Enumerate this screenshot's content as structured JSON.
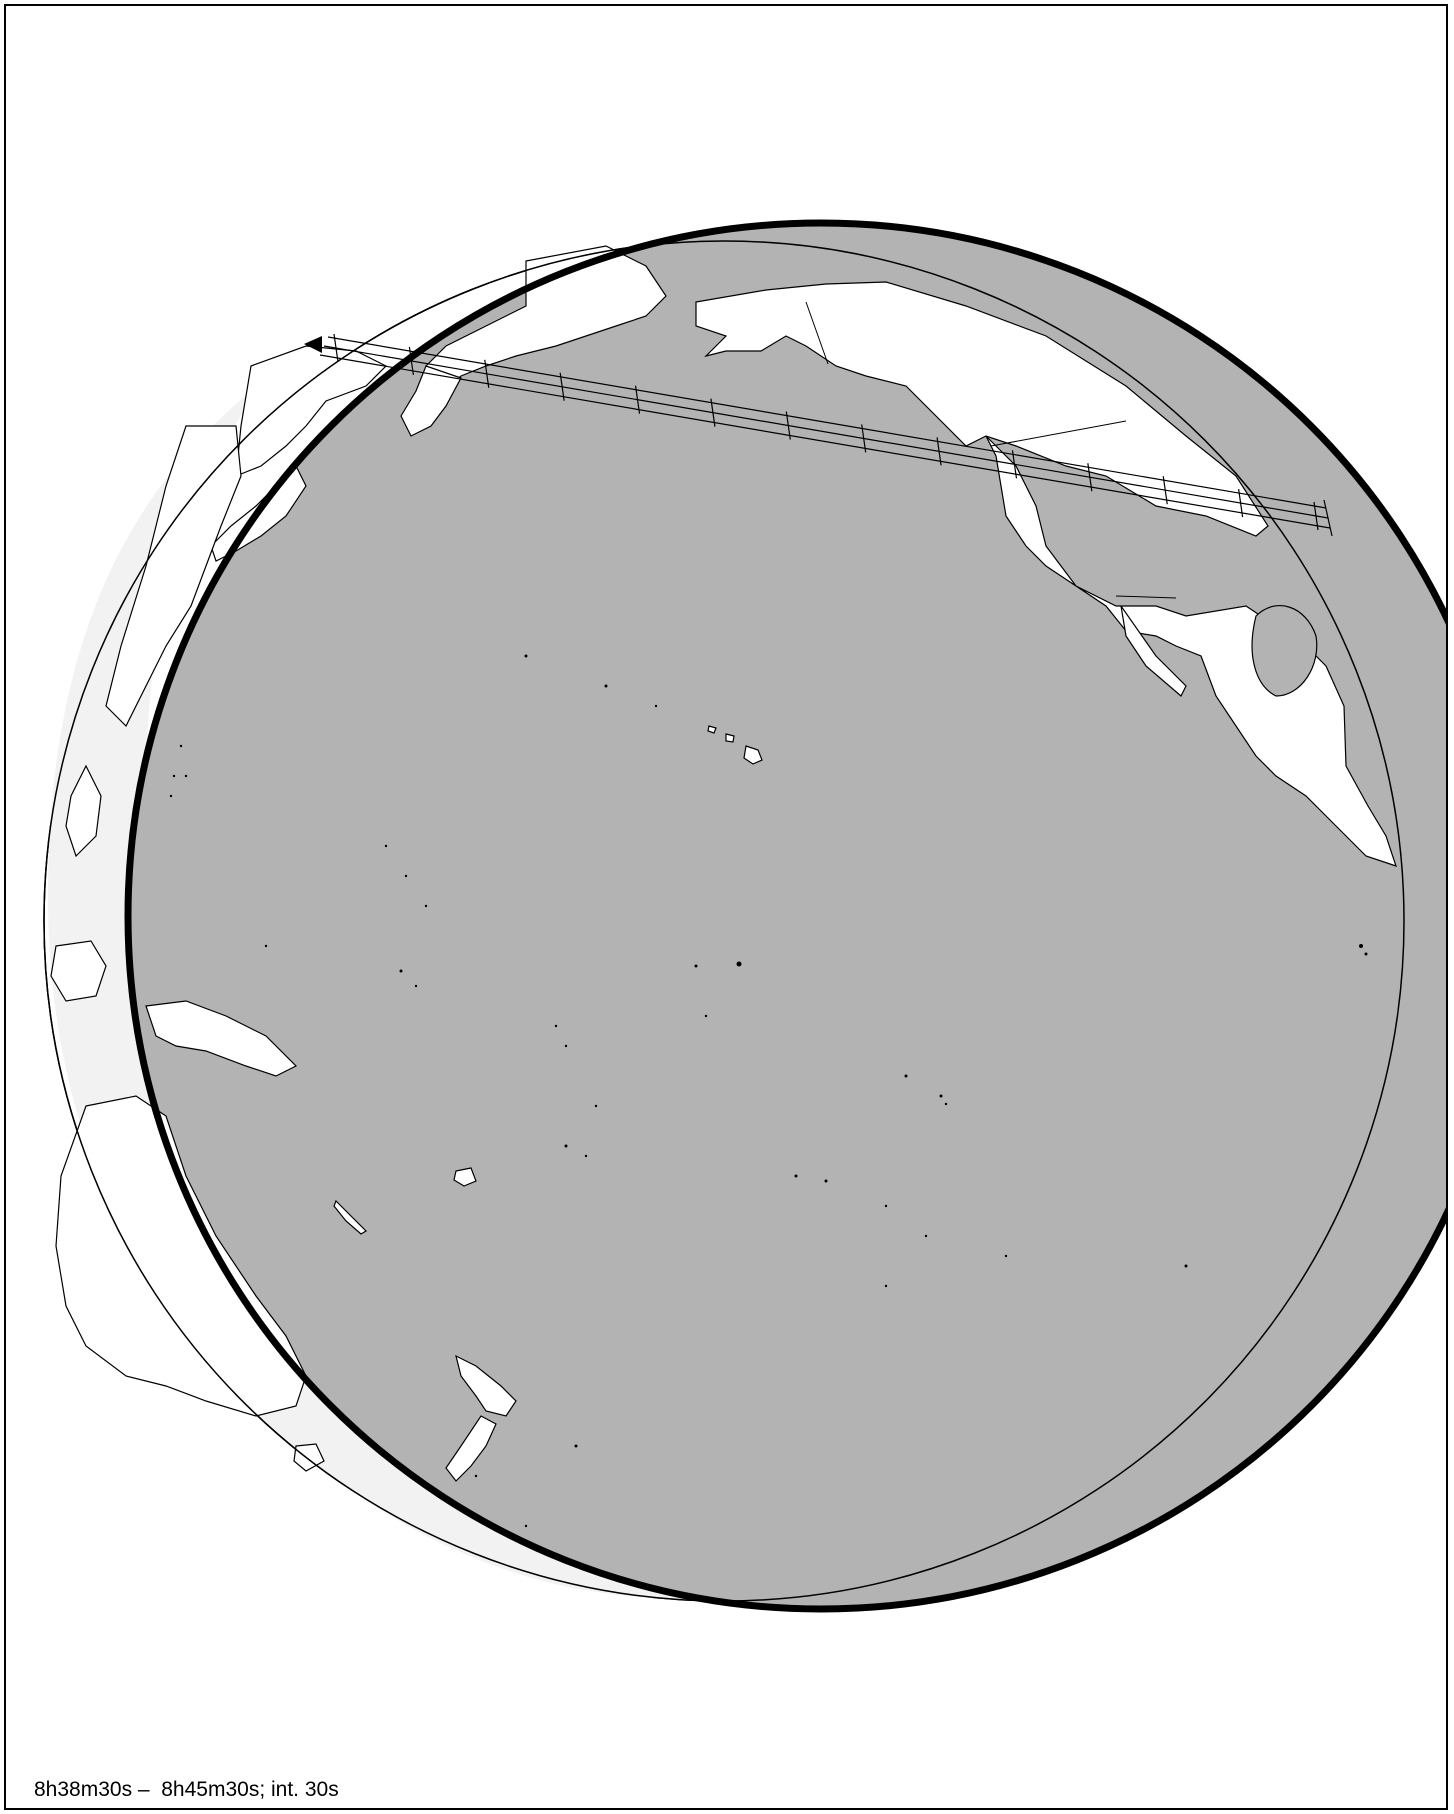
{
  "caption": "8h38m30s –  8h45m30s; int. 30s",
  "colors": {
    "earth_day": "#ffffff",
    "earth_twilight": "#f2f2f2",
    "ocean_in_shadow": "#b3b3b3",
    "land": "#ffffff",
    "outline": "#000000"
  },
  "map": {
    "projection": "orthographic",
    "region": "Pacific Ocean",
    "track_tick_count": 14
  }
}
